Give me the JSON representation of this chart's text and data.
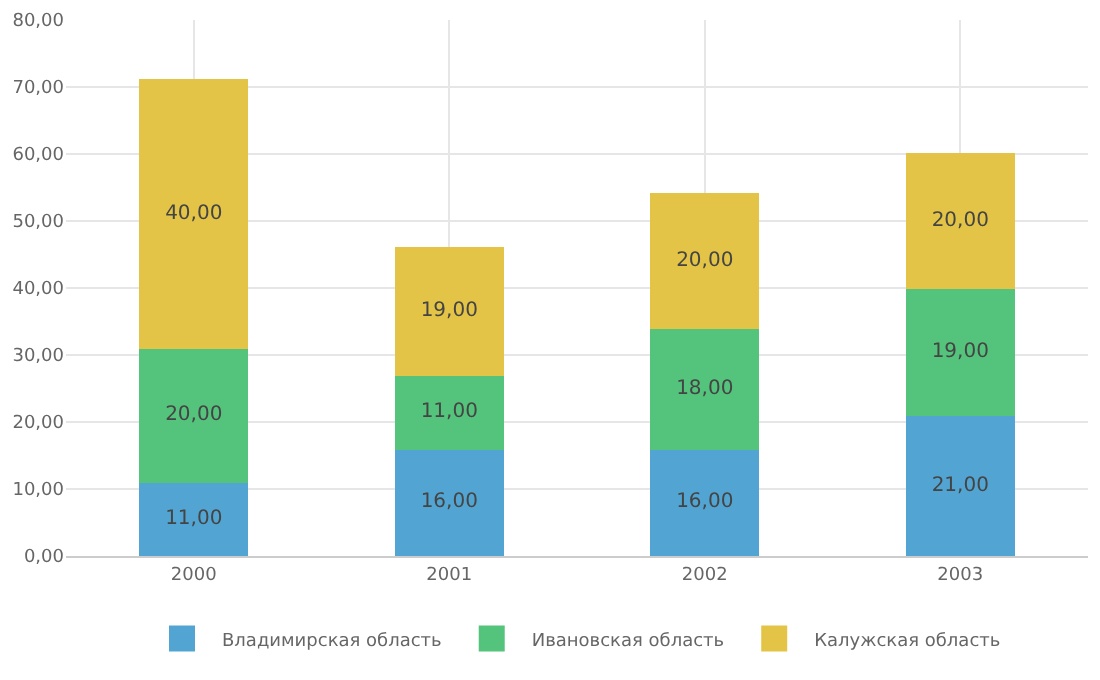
{
  "chart_data": {
    "type": "bar",
    "stacked": true,
    "categories": [
      "2000",
      "2001",
      "2002",
      "2003"
    ],
    "series": [
      {
        "name": "Владимирская область",
        "color": "#52a5d2",
        "values": [
          11,
          16,
          16,
          21
        ],
        "value_labels": [
          "11,00",
          "16,00",
          "16,00",
          "21,00"
        ]
      },
      {
        "name": "Ивановская область",
        "color": "#54c47c",
        "values": [
          20,
          11,
          18,
          19
        ],
        "value_labels": [
          "20,00",
          "11,00",
          "18,00",
          "19,00"
        ]
      },
      {
        "name": "Калужская область",
        "color": "#e3c447",
        "values": [
          40,
          19,
          20,
          20
        ],
        "value_labels": [
          "40,00",
          "19,00",
          "20,00",
          "20,00"
        ]
      }
    ],
    "ylim": [
      0,
      80
    ],
    "yticks": [
      {
        "value": 0,
        "label": "0,00"
      },
      {
        "value": 10,
        "label": "10,00"
      },
      {
        "value": 20,
        "label": "20,00"
      },
      {
        "value": 30,
        "label": "30,00"
      },
      {
        "value": 40,
        "label": "40,00"
      },
      {
        "value": 50,
        "label": "50,00"
      },
      {
        "value": 60,
        "label": "60,00"
      },
      {
        "value": 70,
        "label": "70,00"
      },
      {
        "value": 80,
        "label": "80,00"
      }
    ],
    "grid": true,
    "legend": "bottom"
  }
}
